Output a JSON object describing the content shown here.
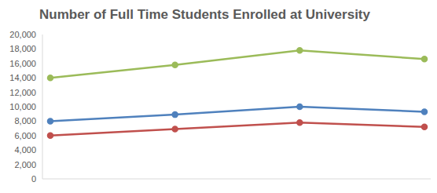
{
  "chart_data": {
    "type": "line",
    "title": "Number of Full Time Students Enrolled at University",
    "categories": [
      null,
      null,
      null,
      null
    ],
    "series": [
      {
        "color": "#9bbb59",
        "values": [
          14000,
          15800,
          17800,
          16600
        ]
      },
      {
        "color": "#4f81bd",
        "values": [
          8000,
          8900,
          10000,
          9300
        ]
      },
      {
        "color": "#c0504d",
        "values": [
          6000,
          6900,
          7800,
          7200
        ]
      }
    ],
    "ylim": [
      0,
      20000
    ],
    "yticks": [
      0,
      {
        "value": 2000,
        "label": "2,000"
      },
      {
        "value": 4000,
        "label": "4,000"
      },
      {
        "value": 6000,
        "label": "6,000"
      },
      {
        "value": 8000,
        "label": "8,000"
      },
      {
        "value": 10000,
        "label": "10,000"
      },
      {
        "value": 12000,
        "label": "12,000"
      },
      {
        "value": 14000,
        "label": "14,000"
      },
      {
        "value": 16000,
        "label": "16,000"
      },
      {
        "value": 18000,
        "label": "18,000"
      },
      {
        "value": 20000,
        "label": "20,000"
      }
    ],
    "grid": false,
    "marker": "circle",
    "legend": null
  }
}
